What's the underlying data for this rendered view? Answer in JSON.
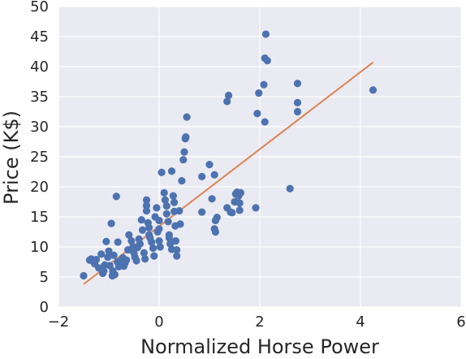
{
  "colors": {
    "background": "#eaeaf2",
    "grid": "#ffffff",
    "points": "#4c72b0",
    "fit_line": "#dd8452",
    "text": "#262626"
  },
  "chart_data": {
    "type": "scatter",
    "title": "",
    "xlabel": "Normalized Horse Power",
    "ylabel": "Price (K$)",
    "xlim": [
      -2,
      6
    ],
    "ylim": [
      0,
      50
    ],
    "xticks": [
      -2,
      0,
      2,
      4,
      6
    ],
    "yticks": [
      0,
      5,
      10,
      15,
      20,
      25,
      30,
      35,
      40,
      45,
      50
    ],
    "grid": true,
    "legend": "none",
    "series": [
      {
        "kind": "scatter",
        "points": [
          [
            -1.5,
            5.2
          ],
          [
            -1.38,
            7.8
          ],
          [
            -1.35,
            8.0
          ],
          [
            -1.3,
            7.5
          ],
          [
            -1.28,
            7.2
          ],
          [
            -1.25,
            7.9
          ],
          [
            -1.2,
            6.5
          ],
          [
            -1.15,
            8.8
          ],
          [
            -1.12,
            5.6
          ],
          [
            -1.1,
            6.0
          ],
          [
            -1.08,
            7.0
          ],
          [
            -1.05,
            10.9
          ],
          [
            -1.02,
            8.3
          ],
          [
            -1.0,
            9.3
          ],
          [
            -0.98,
            6.9
          ],
          [
            -0.95,
            13.9
          ],
          [
            -0.93,
            5.2
          ],
          [
            -0.92,
            6.0
          ],
          [
            -0.9,
            8.6
          ],
          [
            -0.88,
            5.4
          ],
          [
            -0.85,
            18.4
          ],
          [
            -0.83,
            7.5
          ],
          [
            -0.82,
            10.8
          ],
          [
            -0.8,
            6.7
          ],
          [
            -0.78,
            7.0
          ],
          [
            -0.75,
            7.7
          ],
          [
            -0.72,
            8.2
          ],
          [
            -0.7,
            6.8
          ],
          [
            -0.68,
            7.3
          ],
          [
            -0.65,
            7.8
          ],
          [
            -0.62,
            9.5
          ],
          [
            -0.6,
            12.0
          ],
          [
            -0.55,
            11.0
          ],
          [
            -0.52,
            10.0
          ],
          [
            -0.5,
            9.0
          ],
          [
            -0.48,
            8.3
          ],
          [
            -0.45,
            7.7
          ],
          [
            -0.43,
            9.9
          ],
          [
            -0.4,
            11.3
          ],
          [
            -0.38,
            10.5
          ],
          [
            -0.35,
            14.5
          ],
          [
            -0.33,
            12.8
          ],
          [
            -0.3,
            9.0
          ],
          [
            -0.28,
            8.0
          ],
          [
            -0.25,
            16.0
          ],
          [
            -0.25,
            17.8
          ],
          [
            -0.25,
            16.9
          ],
          [
            -0.22,
            14.0
          ],
          [
            -0.2,
            13.2
          ],
          [
            -0.2,
            12.0
          ],
          [
            -0.18,
            11.5
          ],
          [
            -0.15,
            10.8
          ],
          [
            -0.12,
            9.8
          ],
          [
            -0.1,
            8.5
          ],
          [
            -0.08,
            15.0
          ],
          [
            -0.05,
            16.5
          ],
          [
            -0.03,
            12.5
          ],
          [
            0.0,
            14.4
          ],
          [
            0.0,
            13.0
          ],
          [
            0.0,
            11.0
          ],
          [
            0.02,
            10.0
          ],
          [
            0.05,
            22.4
          ],
          [
            0.1,
            19.0
          ],
          [
            0.12,
            17.8
          ],
          [
            0.15,
            16.8
          ],
          [
            0.15,
            15.5
          ],
          [
            0.18,
            14.2
          ],
          [
            0.2,
            12.0
          ],
          [
            0.2,
            11.5
          ],
          [
            0.22,
            10.5
          ],
          [
            0.25,
            9.6
          ],
          [
            0.25,
            22.6
          ],
          [
            0.28,
            18.5
          ],
          [
            0.3,
            17.4
          ],
          [
            0.3,
            15.9
          ],
          [
            0.32,
            13.5
          ],
          [
            0.33,
            11.0
          ],
          [
            0.35,
            9.5
          ],
          [
            0.35,
            8.5
          ],
          [
            0.4,
            16.0
          ],
          [
            0.42,
            13.8
          ],
          [
            0.45,
            21.0
          ],
          [
            0.48,
            24.5
          ],
          [
            0.5,
            25.8
          ],
          [
            0.52,
            28.0
          ],
          [
            0.53,
            28.3
          ],
          [
            0.55,
            31.6
          ],
          [
            0.85,
            21.7
          ],
          [
            0.85,
            15.8
          ],
          [
            1.0,
            23.7
          ],
          [
            1.05,
            18.0
          ],
          [
            1.1,
            22.0
          ],
          [
            1.1,
            13.0
          ],
          [
            1.12,
            12.5
          ],
          [
            1.15,
            14.9
          ],
          [
            1.12,
            14.4
          ],
          [
            1.35,
            16.5
          ],
          [
            1.35,
            34.2
          ],
          [
            1.38,
            35.2
          ],
          [
            1.42,
            15.8
          ],
          [
            1.45,
            15.7
          ],
          [
            1.5,
            17.5
          ],
          [
            1.52,
            18.8
          ],
          [
            1.55,
            19.1
          ],
          [
            1.58,
            18.5
          ],
          [
            1.6,
            17.3
          ],
          [
            1.6,
            16.1
          ],
          [
            1.62,
            19.0
          ],
          [
            1.92,
            16.5
          ],
          [
            1.95,
            32.2
          ],
          [
            1.98,
            35.6
          ],
          [
            2.08,
            37.0
          ],
          [
            2.1,
            41.4
          ],
          [
            2.1,
            30.8
          ],
          [
            2.12,
            45.4
          ],
          [
            2.15,
            41.0
          ],
          [
            2.6,
            19.7
          ],
          [
            2.75,
            37.2
          ],
          [
            2.75,
            34.0
          ],
          [
            2.75,
            32.5
          ],
          [
            4.25,
            36.1
          ]
        ]
      },
      {
        "kind": "line",
        "x": [
          -1.5,
          4.25
        ],
        "y": [
          3.8,
          40.7
        ]
      }
    ]
  }
}
